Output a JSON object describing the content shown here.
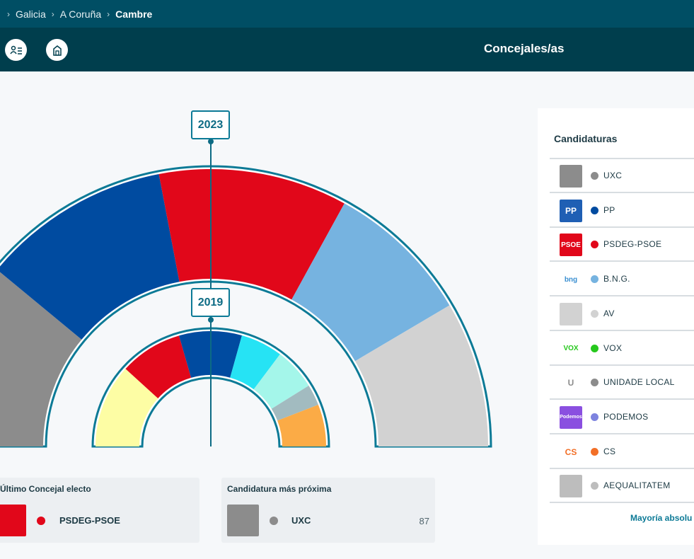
{
  "breadcrumb": {
    "items": [
      "Galicia",
      "A Coruña"
    ],
    "current": "Cambre"
  },
  "header": {
    "title": "Concejales/as",
    "buttons": [
      {
        "icon": "candidate-list-icon"
      },
      {
        "icon": "municipality-icon"
      }
    ]
  },
  "chart_data": {
    "type": "hemicycle",
    "rings": [
      {
        "year": "2023",
        "segments": [
          {
            "party": "UXC",
            "color": "#8c8c8c",
            "fraction": 0.22
          },
          {
            "party": "PP",
            "color": "#004ba0",
            "fraction": 0.22
          },
          {
            "party": "PSDEG-PSOE",
            "color": "#e1071a",
            "fraction": 0.22
          },
          {
            "party": "B.N.G.",
            "color": "#76b3e0",
            "fraction": 0.17
          },
          {
            "party": "AV",
            "color": "#d2d2d2",
            "fraction": 0.17
          }
        ]
      },
      {
        "year": "2019",
        "segments": [
          {
            "party": "AV",
            "color": "#fdfda4",
            "fraction": 0.235
          },
          {
            "party": "PSDEG-PSOE",
            "color": "#e1071a",
            "fraction": 0.176
          },
          {
            "party": "PP",
            "color": "#004ba0",
            "fraction": 0.176
          },
          {
            "party": "",
            "color": "#26e3f4",
            "fraction": 0.118
          },
          {
            "party": "",
            "color": "#a4f6ea",
            "fraction": 0.118
          },
          {
            "party": "",
            "color": "#a2bbc0",
            "fraction": 0.059
          },
          {
            "party": "",
            "color": "#fbab46",
            "fraction": 0.118
          }
        ]
      }
    ]
  },
  "last_elected": {
    "label": "Último Concejal electo",
    "party": "PSDEG-PSOE",
    "color": "#e1071a"
  },
  "nearest": {
    "label": "Candidatura más próxima",
    "party": "UXC",
    "color": "#8c8c8c",
    "votes": "87"
  },
  "candidaturas": {
    "title": "Candidaturas",
    "items": [
      {
        "name": "UXC",
        "dot": "#8c8c8c",
        "logo": "uxc-logo",
        "logo_bg": "#8c8c8c",
        "logo_text": ""
      },
      {
        "name": "PP",
        "dot": "#004ba0",
        "logo": "pp-logo",
        "logo_bg": "#1f5fb4",
        "logo_text": "PP"
      },
      {
        "name": "PSDEG-PSOE",
        "dot": "#e1071a",
        "logo": "psoe-logo",
        "logo_bg": "#e1071a",
        "logo_text": "PSOE"
      },
      {
        "name": "B.N.G.",
        "dot": "#76b3e0",
        "logo": "bng-logo",
        "logo_bg": "#ffffff",
        "logo_text": "bng"
      },
      {
        "name": "AV",
        "dot": "#d2d2d2",
        "logo": "av-logo",
        "logo_bg": "#d2d2d2",
        "logo_text": ""
      },
      {
        "name": "VOX",
        "dot": "#26c81c",
        "logo": "vox-logo",
        "logo_bg": "#ffffff",
        "logo_text": "VOX"
      },
      {
        "name": "UNIDADE LOCAL",
        "dot": "#8c8c8c",
        "logo": "unidade-local-logo",
        "logo_bg": "#ffffff",
        "logo_text": "U"
      },
      {
        "name": "PODEMOS",
        "dot": "#7d83df",
        "logo": "podemos-logo",
        "logo_bg": "#8a4fe0",
        "logo_text": "Podemos"
      },
      {
        "name": "CS",
        "dot": "#f26f27",
        "logo": "cs-logo",
        "logo_bg": "#ffffff",
        "logo_text": "CS"
      },
      {
        "name": "AEQUALITATEM",
        "dot": "#bdbdbd",
        "logo": "aequalitatem-logo",
        "logo_bg": "#bdbdbd",
        "logo_text": ""
      }
    ],
    "majority_label": "Mayoría absolu"
  }
}
